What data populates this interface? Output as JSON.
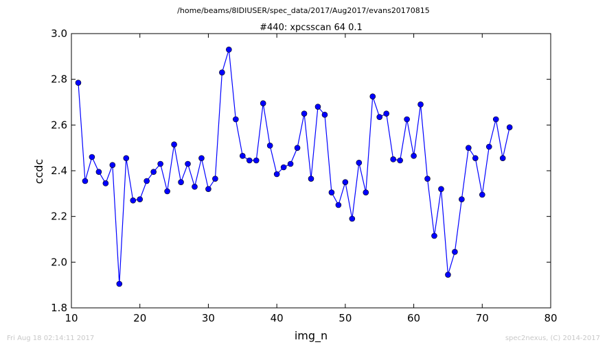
{
  "header": {
    "path": "/home/beams/8IDIUSER/spec_data/2017/Aug2017/evans20170815"
  },
  "footer": {
    "timestamp": "Fri Aug 18 02:14:11 2017",
    "credit": "spec2nexus, (C) 2014-2017"
  },
  "chart_data": {
    "type": "line",
    "title": "#440: xpcsscan 64 0.1",
    "xlabel": "img_n",
    "ylabel": "ccdc",
    "xlim": [
      10,
      80
    ],
    "ylim": [
      1.8,
      3.0
    ],
    "xticks": [
      10,
      20,
      30,
      40,
      50,
      60,
      70,
      80
    ],
    "yticks": [
      1.8,
      2.0,
      2.2,
      2.4,
      2.6,
      2.8,
      3.0
    ],
    "xtick_labels": [
      "10",
      "20",
      "30",
      "40",
      "50",
      "60",
      "70",
      "80"
    ],
    "ytick_labels": [
      "1.8",
      "2.0",
      "2.2",
      "2.4",
      "2.6",
      "2.8",
      "3.0"
    ],
    "line_color": "#0000ff",
    "marker": "circle",
    "grid": false,
    "x": [
      11,
      12,
      13,
      14,
      15,
      16,
      17,
      18,
      19,
      20,
      21,
      22,
      23,
      24,
      25,
      26,
      27,
      28,
      29,
      30,
      31,
      32,
      33,
      34,
      35,
      36,
      37,
      38,
      39,
      40,
      41,
      42,
      43,
      44,
      45,
      46,
      47,
      48,
      49,
      50,
      51,
      52,
      53,
      54,
      55,
      56,
      57,
      58,
      59,
      60,
      61,
      62,
      63,
      64,
      65,
      66,
      67,
      68,
      69,
      70,
      71,
      72,
      73,
      74
    ],
    "y": [
      2.785,
      2.355,
      2.46,
      2.395,
      2.345,
      2.425,
      1.905,
      2.455,
      2.27,
      2.275,
      2.355,
      2.395,
      2.43,
      2.31,
      2.515,
      2.35,
      2.43,
      2.33,
      2.455,
      2.32,
      2.365,
      2.83,
      2.93,
      2.625,
      2.465,
      2.445,
      2.445,
      2.695,
      2.51,
      2.385,
      2.415,
      2.43,
      2.5,
      2.65,
      2.365,
      2.68,
      2.645,
      2.305,
      2.25,
      2.35,
      2.19,
      2.435,
      2.305,
      2.725,
      2.635,
      2.65,
      2.45,
      2.445,
      2.625,
      2.465,
      2.69,
      2.365,
      2.115,
      2.32,
      1.945,
      2.045,
      2.275,
      2.5,
      2.455,
      2.295,
      2.505,
      2.625,
      2.455,
      2.59
    ]
  }
}
